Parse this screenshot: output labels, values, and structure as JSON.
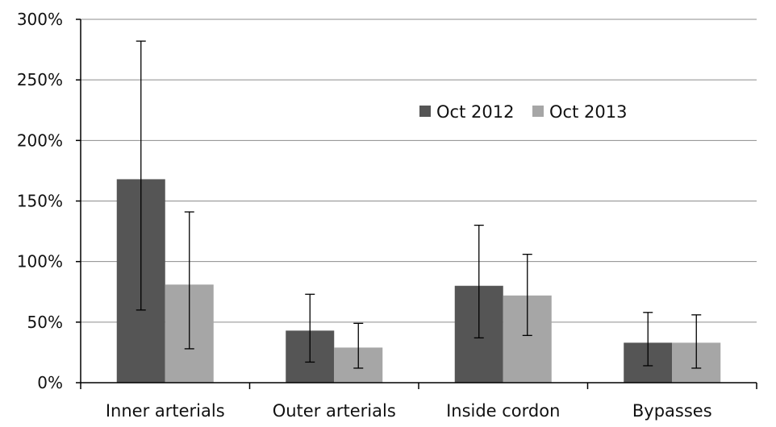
{
  "chart_data": {
    "type": "bar",
    "title": "",
    "xlabel": "",
    "ylabel": "",
    "categories": [
      "Inner arterials",
      "Outer arterials",
      "Inside cordon",
      "Bypasses"
    ],
    "ylim": [
      0,
      300
    ],
    "yticks": [
      0,
      50,
      100,
      150,
      200,
      250,
      300
    ],
    "ytick_labels": [
      "0%",
      "50%",
      "100%",
      "150%",
      "200%",
      "250%",
      "300%"
    ],
    "grid": true,
    "legend_position": "top-right",
    "series": [
      {
        "name": "Oct 2012",
        "color": "#555555",
        "values": [
          168,
          43,
          80,
          33
        ],
        "error_low": [
          60,
          17,
          37,
          14
        ],
        "error_high": [
          282,
          73,
          130,
          58
        ]
      },
      {
        "name": "Oct 2013",
        "color": "#a6a6a6",
        "values": [
          81,
          29,
          72,
          33
        ],
        "error_low": [
          28,
          12,
          39,
          12
        ],
        "error_high": [
          141,
          49,
          106,
          56
        ]
      }
    ]
  }
}
